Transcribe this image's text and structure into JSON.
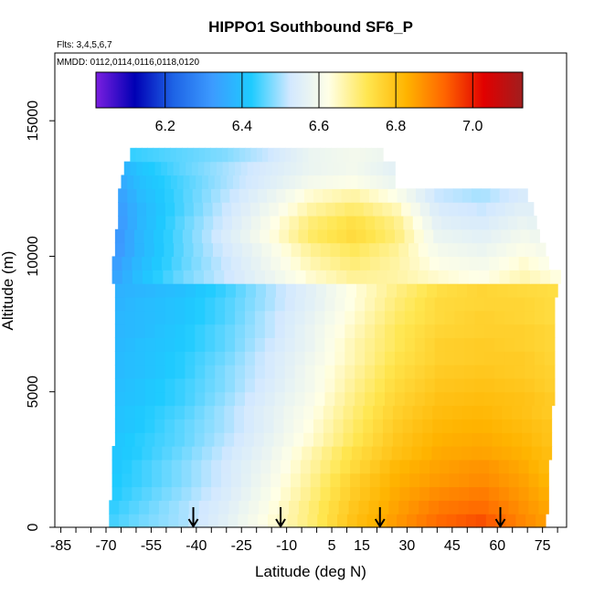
{
  "chart_data": {
    "type": "heatmap",
    "title": "HIPPO1 Southbound SF6_P",
    "notes": [
      "Flts: 3,4,5,6,7",
      "MMDD: 0112,0114,0116,0118,0120"
    ],
    "xlabel": "Latitude (deg N)",
    "ylabel": "Altitude (m)",
    "xlim": [
      -87,
      83
    ],
    "ylim": [
      0,
      17500
    ],
    "x_ticks": [
      -85,
      -70,
      -55,
      -40,
      -25,
      -10,
      5,
      15,
      30,
      45,
      60,
      75
    ],
    "y_ticks": [
      0,
      5000,
      10000,
      15000
    ],
    "colorbar": {
      "min": 6.02,
      "max": 7.13,
      "ticks": [
        6.2,
        6.4,
        6.6,
        6.8,
        7.0
      ],
      "colors": [
        "#7b1fe0",
        "#0000b4",
        "#1e64e6",
        "#3c9bff",
        "#1ecbff",
        "#d2e8ff",
        "#ffffe6",
        "#ffe650",
        "#ffb400",
        "#ff6400",
        "#e10000",
        "#a01e1e"
      ]
    },
    "flight_markers_lat": [
      -41,
      -12,
      21,
      61
    ],
    "altitude_bands_m": [
      250,
      750,
      1250,
      1750,
      2250,
      2750,
      3250,
      3750,
      4250,
      4750,
      5250,
      5750,
      6250,
      6750,
      7250,
      7750,
      8250,
      8750,
      9250,
      9750,
      10250,
      10750,
      11250,
      11750,
      12250,
      12750,
      13250,
      13750
    ],
    "band_lat_range": [
      [
        -69,
        76
      ],
      [
        -69,
        77
      ],
      [
        -68,
        77
      ],
      [
        -68,
        77
      ],
      [
        -68,
        77
      ],
      [
        -68,
        78
      ],
      [
        -67,
        78
      ],
      [
        -67,
        78
      ],
      [
        -67,
        78
      ],
      [
        -67,
        79
      ],
      [
        -67,
        79
      ],
      [
        -67,
        79
      ],
      [
        -67,
        79
      ],
      [
        -67,
        79
      ],
      [
        -67,
        79
      ],
      [
        -67,
        79
      ],
      [
        -67,
        79
      ],
      [
        -67,
        80
      ],
      [
        -68,
        81
      ],
      [
        -68,
        77
      ],
      [
        -67,
        76
      ],
      [
        -67,
        74
      ],
      [
        -66,
        73
      ],
      [
        -66,
        72
      ],
      [
        -66,
        70
      ],
      [
        -65,
        26
      ],
      [
        -64,
        26
      ],
      [
        -62,
        22
      ]
    ],
    "sf6_by_band": [
      [
        6.45,
        6.43,
        6.47,
        6.5,
        6.56,
        6.63,
        6.7,
        6.8,
        6.86,
        6.92,
        6.95,
        6.88,
        6.83
      ],
      [
        6.44,
        6.42,
        6.46,
        6.5,
        6.55,
        6.62,
        6.7,
        6.79,
        6.85,
        6.9,
        6.92,
        6.87,
        6.82
      ],
      [
        6.43,
        6.41,
        6.45,
        6.49,
        6.54,
        6.61,
        6.69,
        6.78,
        6.84,
        6.88,
        6.9,
        6.86,
        6.81
      ],
      [
        6.43,
        6.41,
        6.44,
        6.48,
        6.53,
        6.6,
        6.68,
        6.77,
        6.83,
        6.86,
        6.88,
        6.85,
        6.8
      ],
      [
        6.42,
        6.4,
        6.44,
        6.48,
        6.53,
        6.59,
        6.67,
        6.75,
        6.82,
        6.85,
        6.87,
        6.84,
        6.79
      ],
      [
        6.42,
        6.4,
        6.43,
        6.47,
        6.52,
        6.58,
        6.66,
        6.74,
        6.8,
        6.84,
        6.85,
        6.83,
        6.79
      ],
      [
        6.42,
        6.4,
        6.43,
        6.46,
        6.51,
        6.57,
        6.64,
        6.72,
        6.79,
        6.83,
        6.84,
        6.82,
        6.78
      ],
      [
        6.41,
        6.39,
        6.42,
        6.46,
        6.5,
        6.56,
        6.63,
        6.71,
        6.78,
        6.82,
        6.83,
        6.81,
        6.78
      ],
      [
        6.41,
        6.39,
        6.42,
        6.45,
        6.5,
        6.56,
        6.62,
        6.7,
        6.77,
        6.81,
        6.82,
        6.8,
        6.77
      ],
      [
        6.41,
        6.39,
        6.41,
        6.44,
        6.49,
        6.55,
        6.61,
        6.69,
        6.76,
        6.8,
        6.81,
        6.8,
        6.77
      ],
      [
        6.4,
        6.38,
        6.41,
        6.44,
        6.48,
        6.54,
        6.6,
        6.68,
        6.75,
        6.79,
        6.8,
        6.79,
        6.76
      ],
      [
        6.4,
        6.38,
        6.4,
        6.43,
        6.48,
        6.53,
        6.6,
        6.67,
        6.74,
        6.78,
        6.79,
        6.78,
        6.76
      ],
      [
        6.4,
        6.38,
        6.4,
        6.43,
        6.47,
        6.53,
        6.59,
        6.66,
        6.73,
        6.77,
        6.78,
        6.78,
        6.75
      ],
      [
        6.39,
        6.37,
        6.4,
        6.42,
        6.46,
        6.52,
        6.58,
        6.66,
        6.72,
        6.77,
        6.78,
        6.77,
        6.75
      ],
      [
        6.39,
        6.37,
        6.39,
        6.42,
        6.46,
        6.51,
        6.58,
        6.65,
        6.72,
        6.76,
        6.77,
        6.77,
        6.75
      ],
      [
        6.39,
        6.37,
        6.39,
        6.41,
        6.45,
        6.51,
        6.57,
        6.64,
        6.71,
        6.75,
        6.77,
        6.76,
        6.74
      ],
      [
        6.38,
        6.36,
        6.39,
        6.41,
        6.45,
        6.5,
        6.56,
        6.63,
        6.7,
        6.75,
        6.76,
        6.76,
        6.74
      ],
      [
        6.38,
        6.36,
        6.38,
        6.4,
        6.44,
        6.5,
        6.56,
        6.63,
        6.69,
        6.74,
        6.76,
        6.75,
        6.74
      ],
      [
        6.2,
        6.3,
        6.4,
        6.47,
        6.52,
        6.58,
        6.64,
        6.68,
        6.67,
        6.64,
        6.62,
        6.66,
        6.62
      ],
      [
        6.17,
        6.28,
        6.39,
        6.46,
        6.52,
        6.59,
        6.66,
        6.7,
        6.67,
        6.62,
        6.6,
        6.64,
        6.6
      ],
      [
        6.14,
        6.26,
        6.38,
        6.46,
        6.53,
        6.6,
        6.68,
        6.72,
        6.68,
        6.6,
        6.58,
        6.62,
        6.58
      ],
      [
        6.13,
        6.25,
        6.38,
        6.46,
        6.54,
        6.62,
        6.71,
        6.75,
        6.7,
        6.58,
        6.56,
        6.6,
        6.56
      ],
      [
        6.13,
        6.25,
        6.38,
        6.46,
        6.53,
        6.61,
        6.7,
        6.74,
        6.69,
        6.56,
        6.54,
        6.58,
        6.54
      ],
      [
        6.14,
        6.26,
        6.38,
        6.45,
        6.52,
        6.59,
        6.67,
        6.71,
        6.66,
        6.54,
        6.52,
        6.56,
        6.52
      ],
      [
        6.16,
        6.27,
        6.39,
        6.45,
        6.51,
        6.57,
        6.64,
        6.67,
        6.62,
        6.52,
        6.5,
        6.54,
        6.5
      ],
      [
        6.18,
        6.29,
        6.4,
        6.45,
        6.5,
        6.55,
        6.6,
        6.62,
        6.58,
        6.5,
        6.48,
        6.52,
        6.48
      ],
      [
        6.2,
        6.31,
        6.41,
        6.46,
        6.5,
        6.54,
        6.58,
        6.6,
        6.56,
        6.48,
        6.46,
        6.5,
        6.46
      ],
      [
        6.4,
        6.42,
        6.44,
        6.46,
        6.48,
        6.52,
        6.58,
        6.6,
        6.58,
        6.54,
        6.52,
        6.52,
        6.5
      ]
    ],
    "grid": false
  }
}
